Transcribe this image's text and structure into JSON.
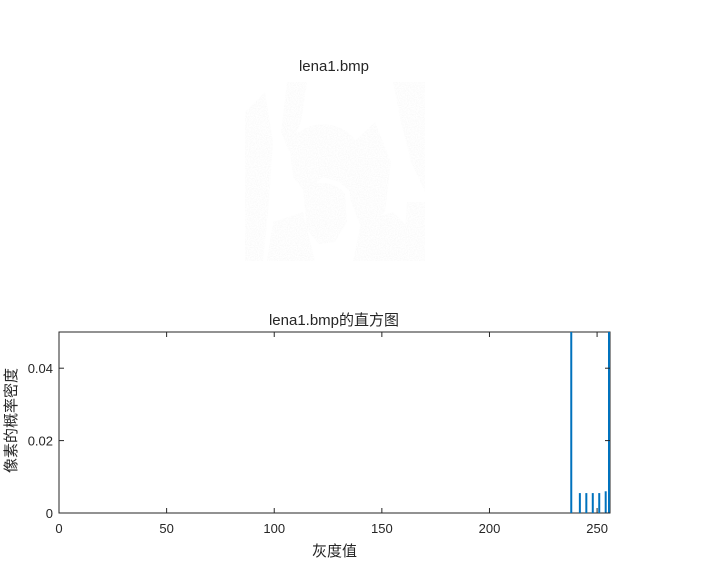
{
  "image_panel": {
    "title": "lena1.bmp"
  },
  "chart_data": {
    "type": "bar",
    "title": "lena1.bmp的直方图",
    "xlabel": "灰度值",
    "ylabel": "像素的概率密度",
    "xlim": [
      0,
      256
    ],
    "ylim": [
      0,
      0.05
    ],
    "xticks": [
      0,
      50,
      100,
      150,
      200,
      250
    ],
    "yticks": [
      0,
      0.02,
      0.04
    ],
    "ytick_labels": [
      "0",
      "0.02",
      "0.04"
    ],
    "x": [
      238,
      242,
      245,
      248,
      251,
      254,
      256
    ],
    "values": [
      0.05,
      0.0055,
      0.0055,
      0.0055,
      0.0055,
      0.006,
      0.05
    ],
    "grid": false,
    "color": "#0072BD"
  }
}
